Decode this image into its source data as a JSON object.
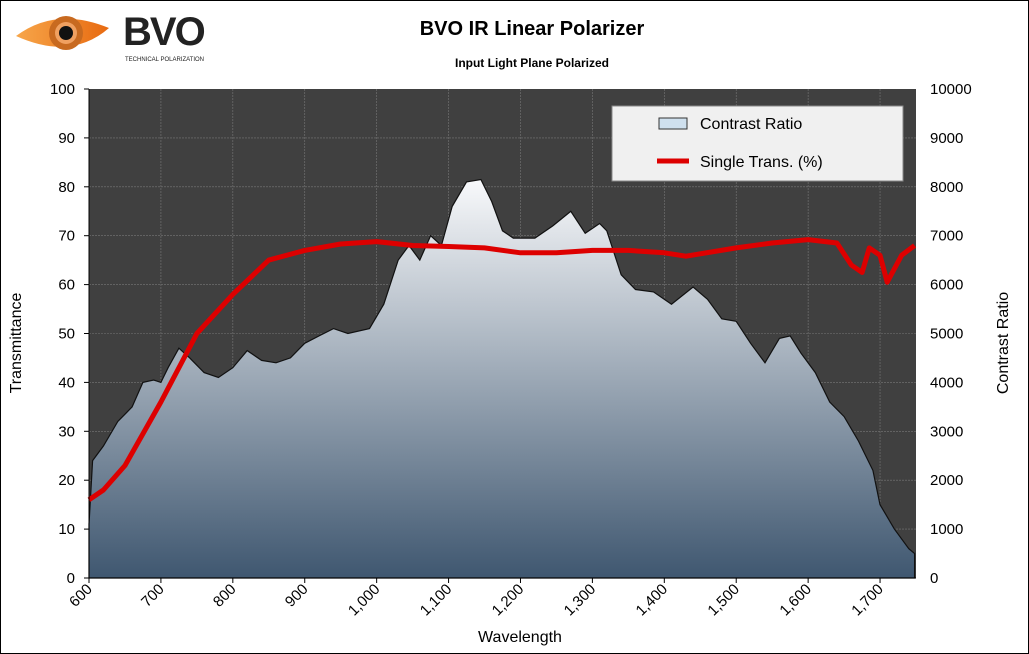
{
  "logo": {
    "brand": "BVO",
    "tagline": "TECHNICAL POLARIZATION"
  },
  "chart_data": {
    "type": "area",
    "title": "BVO IR Linear Polarizer",
    "subtitle": "Input Light Plane Polarized",
    "xlabel": "Wavelength",
    "ylabel": "Transmittance",
    "y2label": "Contrast  Ratio",
    "xlim": [
      600,
      1750
    ],
    "ylim": [
      0,
      100
    ],
    "y2lim": [
      0,
      10000
    ],
    "xticks": [
      600,
      700,
      800,
      900,
      1000,
      1100,
      1200,
      1300,
      1400,
      1500,
      1600,
      1700
    ],
    "xtick_labels": [
      "600",
      "700",
      "800",
      "900",
      "1,000",
      "1,100",
      "1,200",
      "1,300",
      "1,400",
      "1,500",
      "1,600",
      "1,700"
    ],
    "yticks": [
      "0",
      "10",
      "20",
      "30",
      "40",
      "50",
      "60",
      "70",
      "80",
      "90",
      "100"
    ],
    "y2ticks": [
      "0",
      "1000",
      "2000",
      "3000",
      "4000",
      "5000",
      "6000",
      "7000",
      "8000",
      "9000",
      "10000"
    ],
    "grid": true,
    "legend": {
      "placement": "top-right",
      "entries": [
        "Contrast  Ratio",
        "Single  Trans.  (%)"
      ]
    },
    "colors": {
      "plot_bg": "#404040",
      "line": "#dd0000",
      "area_top": "#f8f9fb",
      "area_bottom": "#3f5770"
    },
    "series": [
      {
        "name": "Contrast  Ratio",
        "axis": "right",
        "type": "area",
        "x": [
          600,
          605,
          620,
          640,
          660,
          675,
          690,
          700,
          710,
          725,
          740,
          760,
          780,
          800,
          820,
          840,
          860,
          880,
          900,
          920,
          940,
          960,
          990,
          1010,
          1030,
          1045,
          1060,
          1075,
          1090,
          1105,
          1125,
          1145,
          1160,
          1175,
          1190,
          1220,
          1245,
          1270,
          1290,
          1310,
          1320,
          1340,
          1360,
          1385,
          1410,
          1440,
          1460,
          1480,
          1500,
          1520,
          1540,
          1560,
          1575,
          1590,
          1610,
          1630,
          1650,
          1670,
          1690,
          1700,
          1720,
          1740,
          1748
        ],
        "y": [
          1100,
          2400,
          2700,
          3200,
          3500,
          4000,
          4050,
          4000,
          4300,
          4700,
          4500,
          4200,
          4100,
          4300,
          4650,
          4450,
          4400,
          4500,
          4800,
          4950,
          5100,
          5000,
          5100,
          5600,
          6500,
          6800,
          6500,
          7000,
          6800,
          7600,
          8100,
          8150,
          7700,
          7100,
          6950,
          6950,
          7200,
          7500,
          7050,
          7250,
          7100,
          6200,
          5900,
          5850,
          5600,
          5950,
          5700,
          5300,
          5250,
          4800,
          4400,
          4900,
          4950,
          4600,
          4200,
          3600,
          3300,
          2800,
          2200,
          1500,
          1000,
          600,
          500
        ]
      },
      {
        "name": "Single  Trans.  (%)",
        "axis": "left",
        "type": "line",
        "x": [
          600,
          620,
          650,
          700,
          750,
          800,
          850,
          900,
          950,
          1000,
          1050,
          1100,
          1150,
          1200,
          1250,
          1300,
          1350,
          1400,
          1430,
          1500,
          1550,
          1600,
          1640,
          1660,
          1675,
          1685,
          1700,
          1710,
          1730,
          1748
        ],
        "y": [
          16,
          18,
          23,
          36,
          50,
          58,
          65,
          67,
          68.3,
          68.8,
          68,
          67.8,
          67.5,
          66.5,
          66.5,
          67,
          67,
          66.5,
          65.8,
          67.5,
          68.5,
          69.2,
          68.5,
          64,
          62.5,
          67.5,
          66,
          60.5,
          66,
          68
        ]
      }
    ]
  }
}
